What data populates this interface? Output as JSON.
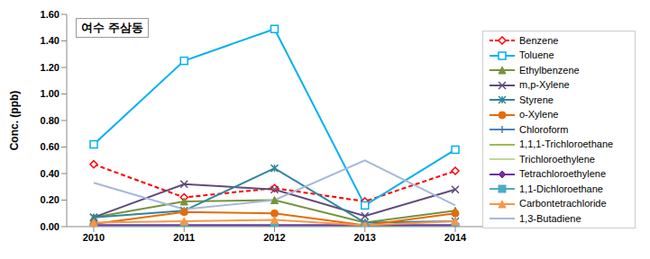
{
  "chart_data": {
    "type": "line",
    "title": "여수 주삼동",
    "y_label": "Conc. (ppb)",
    "categories": [
      "2010",
      "2011",
      "2012",
      "2013",
      "2014"
    ],
    "ylim": [
      0,
      1.6
    ],
    "yticks": [
      {
        "value": 0,
        "label": "0.00"
      },
      {
        "value": 0.2,
        "label": "0.20"
      },
      {
        "value": 0.4,
        "label": "0.40"
      },
      {
        "value": 0.6,
        "label": "0.60"
      },
      {
        "value": 0.8,
        "label": "0.80"
      },
      {
        "value": 1.0,
        "label": "1.00"
      },
      {
        "value": 1.2,
        "label": "1.20"
      },
      {
        "value": 1.4,
        "label": "1.40"
      },
      {
        "value": 1.6,
        "label": "1.60"
      }
    ],
    "grid": false,
    "legend": "right",
    "series": [
      {
        "name": "Benzene",
        "color": "#ff0000",
        "marker": "open_diamond",
        "line_style": "dashed",
        "values": [
          0.47,
          0.22,
          0.29,
          0.19,
          0.42
        ]
      },
      {
        "name": "Toluene",
        "color": "#00b0f0",
        "marker": "open_square",
        "line_style": "solid",
        "values": [
          0.62,
          1.25,
          1.49,
          0.16,
          0.58
        ]
      },
      {
        "name": "Ethylbenzene",
        "color": "#77933c",
        "marker": "triangle",
        "line_style": "solid",
        "values": [
          0.07,
          0.19,
          0.2,
          0.03,
          0.12
        ]
      },
      {
        "name": "m,p-Xylene",
        "color": "#604a7b",
        "marker": "x",
        "line_style": "solid",
        "values": [
          0.07,
          0.32,
          0.28,
          0.08,
          0.28
        ]
      },
      {
        "name": "Styrene",
        "color": "#31859c",
        "marker": "asterisk",
        "line_style": "solid",
        "values": [
          0.07,
          0.12,
          0.44,
          0.03,
          0.04
        ]
      },
      {
        "name": "o-Xylene",
        "color": "#e46c0a",
        "marker": "circle",
        "line_style": "solid",
        "values": [
          0.02,
          0.11,
          0.1,
          0.01,
          0.1
        ]
      },
      {
        "name": "Chloroform",
        "color": "#4a7ebb",
        "marker": "plus",
        "line_style": "solid",
        "values": [
          0.01,
          0.01,
          0.01,
          0.01,
          0.01
        ]
      },
      {
        "name": "1,1,1-Trichloroethane",
        "color": "#9bbb59",
        "marker": "dash",
        "line_style": "solid",
        "values": [
          0,
          0,
          0,
          0,
          0
        ]
      },
      {
        "name": "Trichloroethylene",
        "color": "#c3d69b",
        "marker": "none",
        "line_style": "solid",
        "values": [
          0,
          0,
          0,
          0,
          0
        ]
      },
      {
        "name": "Tetrachloroethylene",
        "color": "#7030a0",
        "marker": "diamond",
        "line_style": "solid",
        "values": [
          0.01,
          0.01,
          0.01,
          0.01,
          0.01
        ]
      },
      {
        "name": "1,1-Dichloroethane",
        "color": "#4bacc6",
        "marker": "square",
        "line_style": "solid",
        "values": [
          0,
          0,
          0,
          0,
          0
        ]
      },
      {
        "name": "Carbontetrachloride",
        "color": "#f79646",
        "marker": "triangle",
        "line_style": "solid",
        "values": [
          0.03,
          0.04,
          0.05,
          0.01,
          0.04
        ]
      },
      {
        "name": "1,3-Butadiene",
        "color": "#a6b8d8",
        "marker": "none",
        "line_style": "solid",
        "values": [
          0.33,
          0.13,
          0.2,
          0.5,
          0.16
        ]
      }
    ]
  }
}
